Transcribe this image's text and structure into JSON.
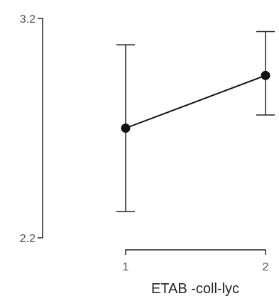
{
  "chart_data": {
    "type": "line",
    "title": "",
    "xlabel": "ETAB -coll-lyc",
    "ylabel": "",
    "x_ticks": [
      "1",
      "2"
    ],
    "y_ticks": [
      "3.2",
      "2.2"
    ],
    "ylim": [
      2.2,
      3.2
    ],
    "xlim": [
      1,
      2
    ],
    "grid": false,
    "series": [
      {
        "points": [
          {
            "x": 1,
            "y": 2.7,
            "lower": 2.32,
            "upper": 3.08
          },
          {
            "x": 2,
            "y": 2.94,
            "lower": 2.76,
            "upper": 3.14
          }
        ]
      }
    ]
  }
}
